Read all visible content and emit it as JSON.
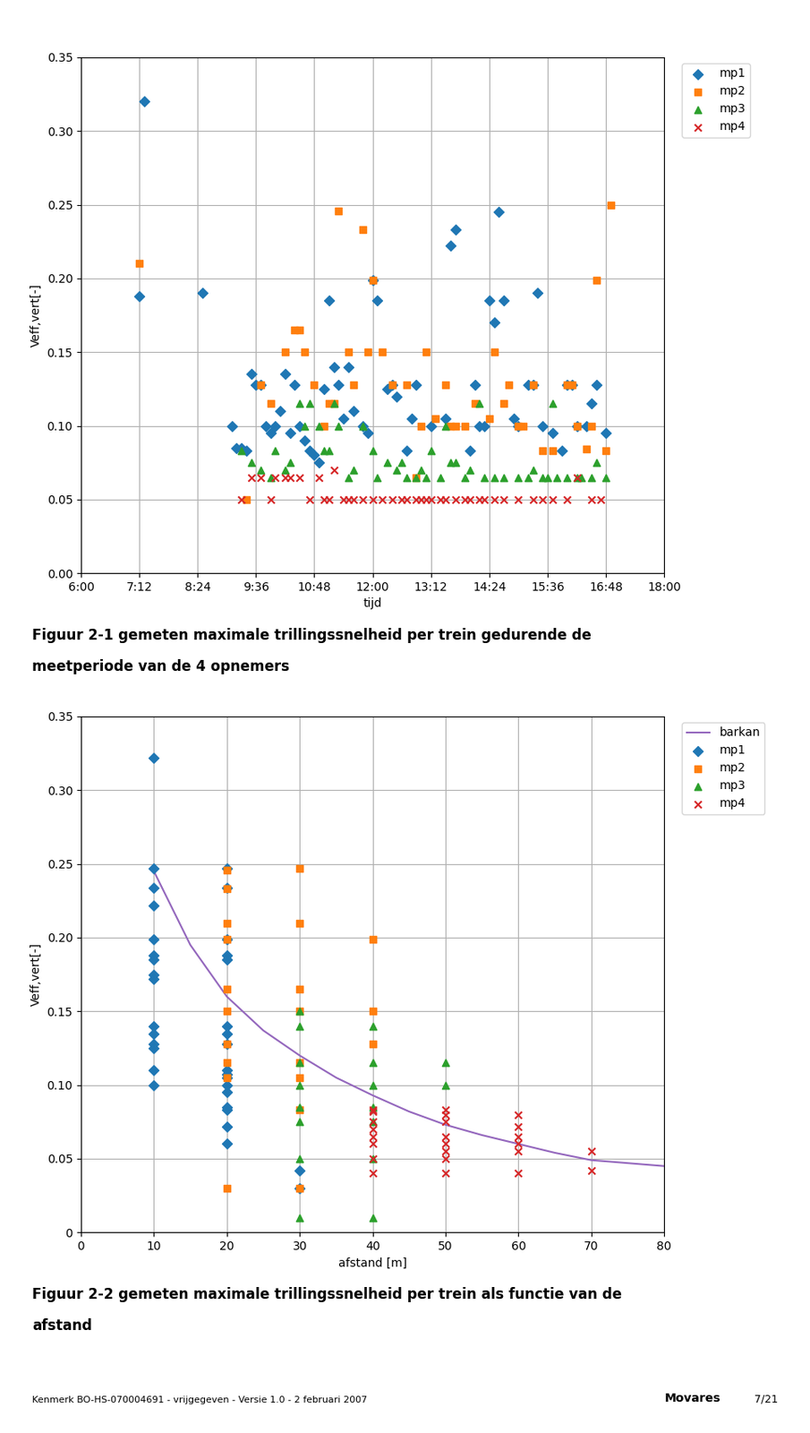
{
  "chart_data": [
    {
      "type": "scatter",
      "xlabel": "tijd",
      "ylabel": "Veff,vert[-]",
      "xlim": [
        6.0,
        18.0
      ],
      "ylim": [
        0.0,
        0.35
      ],
      "xticks": [
        {
          "value": 6.0,
          "label": "6:00"
        },
        {
          "value": 7.2,
          "label": "7:12"
        },
        {
          "value": 8.4,
          "label": "8:24"
        },
        {
          "value": 9.6,
          "label": "9:36"
        },
        {
          "value": 10.8,
          "label": "10:48"
        },
        {
          "value": 12.0,
          "label": "12:00"
        },
        {
          "value": 13.2,
          "label": "13:12"
        },
        {
          "value": 14.4,
          "label": "14:24"
        },
        {
          "value": 15.6,
          "label": "15:36"
        },
        {
          "value": 16.8,
          "label": "16:48"
        },
        {
          "value": 18.0,
          "label": "18:00"
        }
      ],
      "yticks": [
        {
          "value": 0.0,
          "label": "0.00"
        },
        0.05,
        {
          "value": 0.1,
          "label": "0.10"
        },
        0.15,
        {
          "value": 0.2,
          "label": "0.20"
        },
        0.25,
        {
          "value": 0.3,
          "label": "0.30"
        },
        0.35
      ],
      "grid": true,
      "legend": "right",
      "annotations": [
        "Figuur 2-1 gemeten maximale trillingssnelheid per trein gedurende de",
        "meetperiode van de 4 opnemers"
      ],
      "series": [
        {
          "name": "mp1",
          "type": "scatter",
          "marker": "diamond",
          "x": [
            7.2,
            7.3,
            8.5,
            9.1,
            9.2,
            9.3,
            9.4,
            9.5,
            9.6,
            9.7,
            9.8,
            9.9,
            10.0,
            10.1,
            10.2,
            10.3,
            10.4,
            10.5,
            10.6,
            10.7,
            10.8,
            10.9,
            11.0,
            11.1,
            11.2,
            11.3,
            11.4,
            11.5,
            11.6,
            11.8,
            11.9,
            12.0,
            12.1,
            12.3,
            12.4,
            12.5,
            12.7,
            12.8,
            12.9,
            13.2,
            13.5,
            13.6,
            13.7,
            14.0,
            14.1,
            14.2,
            14.3,
            14.4,
            14.5,
            14.6,
            14.7,
            14.9,
            15.0,
            15.2,
            15.3,
            15.4,
            15.5,
            15.7,
            15.9,
            16.0,
            16.1,
            16.2,
            16.4,
            16.5,
            16.6,
            16.8
          ],
          "values": [
            0.188,
            0.32,
            0.19,
            0.1,
            0.085,
            0.085,
            0.083,
            0.135,
            0.128,
            0.128,
            0.1,
            0.095,
            0.1,
            0.11,
            0.135,
            0.095,
            0.128,
            0.1,
            0.09,
            0.083,
            0.08,
            0.075,
            0.125,
            0.185,
            0.14,
            0.128,
            0.105,
            0.14,
            0.11,
            0.1,
            0.095,
            0.199,
            0.185,
            0.125,
            0.128,
            0.12,
            0.083,
            0.105,
            0.128,
            0.1,
            0.105,
            0.222,
            0.233,
            0.083,
            0.128,
            0.1,
            0.1,
            0.185,
            0.17,
            0.245,
            0.185,
            0.105,
            0.1,
            0.128,
            0.128,
            0.19,
            0.1,
            0.095,
            0.083,
            0.128,
            0.128,
            0.1,
            0.1,
            0.115,
            0.128,
            0.095
          ]
        },
        {
          "name": "mp2",
          "type": "scatter",
          "marker": "square",
          "x": [
            7.2,
            9.4,
            9.7,
            9.9,
            10.2,
            10.4,
            10.5,
            10.6,
            10.8,
            11.0,
            11.1,
            11.2,
            11.3,
            11.5,
            11.6,
            11.8,
            11.9,
            12.0,
            12.2,
            12.4,
            12.7,
            12.9,
            13.0,
            13.1,
            13.3,
            13.5,
            13.6,
            13.7,
            13.9,
            14.1,
            14.4,
            14.5,
            14.7,
            14.8,
            15.0,
            15.1,
            15.3,
            15.5,
            15.7,
            16.0,
            16.1,
            16.2,
            16.4,
            16.5,
            16.6,
            16.8,
            16.9
          ],
          "values": [
            0.21,
            0.05,
            0.128,
            0.115,
            0.15,
            0.165,
            0.165,
            0.15,
            0.128,
            0.1,
            0.115,
            0.115,
            0.246,
            0.15,
            0.128,
            0.233,
            0.15,
            0.199,
            0.15,
            0.128,
            0.128,
            0.065,
            0.1,
            0.15,
            0.105,
            0.128,
            0.1,
            0.1,
            0.1,
            0.115,
            0.105,
            0.15,
            0.115,
            0.128,
            0.1,
            0.1,
            0.128,
            0.083,
            0.083,
            0.128,
            0.128,
            0.1,
            0.084,
            0.1,
            0.199,
            0.083,
            0.25
          ]
        },
        {
          "name": "mp3",
          "type": "scatter",
          "marker": "triangle",
          "x": [
            9.3,
            9.5,
            9.7,
            9.9,
            10.0,
            10.2,
            10.3,
            10.5,
            10.6,
            10.7,
            10.9,
            11.0,
            11.1,
            11.2,
            11.3,
            11.5,
            11.6,
            11.8,
            12.0,
            12.1,
            12.3,
            12.5,
            12.6,
            12.7,
            12.9,
            13.0,
            13.1,
            13.2,
            13.4,
            13.5,
            13.6,
            13.7,
            13.9,
            14.0,
            14.2,
            14.3,
            14.5,
            14.7,
            15.0,
            15.2,
            15.3,
            15.5,
            15.6,
            15.7,
            15.8,
            16.0,
            16.2,
            16.3,
            16.5,
            16.6,
            16.8
          ],
          "values": [
            0.083,
            0.075,
            0.07,
            0.065,
            0.083,
            0.07,
            0.075,
            0.115,
            0.1,
            0.115,
            0.1,
            0.083,
            0.083,
            0.115,
            0.1,
            0.065,
            0.07,
            0.1,
            0.083,
            0.065,
            0.075,
            0.07,
            0.075,
            0.065,
            0.065,
            0.07,
            0.065,
            0.083,
            0.065,
            0.1,
            0.075,
            0.075,
            0.065,
            0.07,
            0.115,
            0.065,
            0.065,
            0.065,
            0.065,
            0.065,
            0.07,
            0.065,
            0.065,
            0.115,
            0.065,
            0.065,
            0.065,
            0.065,
            0.065,
            0.075,
            0.065
          ]
        },
        {
          "name": "mp4",
          "type": "scatter",
          "marker": "x",
          "x": [
            9.3,
            9.5,
            9.7,
            9.9,
            10.0,
            10.2,
            10.3,
            10.5,
            10.7,
            10.9,
            11.0,
            11.1,
            11.2,
            11.4,
            11.5,
            11.6,
            11.8,
            12.0,
            12.2,
            12.4,
            12.6,
            12.7,
            12.9,
            13.0,
            13.1,
            13.2,
            13.4,
            13.5,
            13.7,
            13.9,
            14.0,
            14.2,
            14.3,
            14.5,
            14.7,
            15.0,
            15.3,
            15.5,
            15.7,
            16.0,
            16.2,
            16.5,
            16.7
          ],
          "values": [
            0.05,
            0.065,
            0.065,
            0.05,
            0.065,
            0.065,
            0.065,
            0.065,
            0.05,
            0.065,
            0.05,
            0.05,
            0.07,
            0.05,
            0.05,
            0.05,
            0.05,
            0.05,
            0.05,
            0.05,
            0.05,
            0.05,
            0.05,
            0.05,
            0.05,
            0.05,
            0.05,
            0.05,
            0.05,
            0.05,
            0.05,
            0.05,
            0.05,
            0.05,
            0.05,
            0.05,
            0.05,
            0.05,
            0.05,
            0.05,
            0.065,
            0.05,
            0.05
          ]
        }
      ]
    },
    {
      "type": "scatter",
      "xlabel": "afstand [m]",
      "ylabel": "Veff,vert[-]",
      "xlim": [
        0,
        80
      ],
      "ylim": [
        0.0,
        0.35
      ],
      "xticks": [
        0,
        10,
        20,
        30,
        40,
        50,
        60,
        70,
        80
      ],
      "yticks": [
        0,
        0.05,
        {
          "value": 0.1,
          "label": "0.10"
        },
        0.15,
        {
          "value": 0.2,
          "label": "0.20"
        },
        0.25,
        {
          "value": 0.3,
          "label": "0.30"
        },
        0.35
      ],
      "grid": true,
      "legend": "right",
      "annotations": [
        "Figuur 2-2 gemeten maximale trillingssnelheid per trein als functie van de",
        "afstand"
      ],
      "series": [
        {
          "name": "barkan",
          "type": "line",
          "x": [
            10,
            15,
            20,
            25,
            30,
            35,
            40,
            45,
            50,
            55,
            60,
            65,
            70,
            75,
            80
          ],
          "values": [
            0.245,
            0.195,
            0.16,
            0.137,
            0.12,
            0.105,
            0.093,
            0.082,
            0.073,
            0.066,
            0.06,
            0.054,
            0.049,
            0.047,
            0.045
          ]
        },
        {
          "name": "mp1",
          "type": "scatter",
          "marker": "diamond",
          "x": [
            10,
            10,
            10,
            10,
            10,
            10,
            10,
            10,
            10,
            10,
            10,
            10,
            10,
            10,
            10,
            20,
            20,
            20,
            20,
            20,
            20,
            20,
            20,
            20,
            20,
            20,
            20,
            20,
            20,
            20,
            20,
            20,
            30,
            30
          ],
          "values": [
            0.322,
            0.247,
            0.234,
            0.222,
            0.199,
            0.188,
            0.185,
            0.175,
            0.172,
            0.14,
            0.135,
            0.128,
            0.125,
            0.11,
            0.1,
            0.247,
            0.234,
            0.199,
            0.188,
            0.185,
            0.14,
            0.135,
            0.128,
            0.11,
            0.107,
            0.105,
            0.1,
            0.095,
            0.085,
            0.083,
            0.072,
            0.06,
            0.042,
            0.03
          ]
        },
        {
          "name": "mp2",
          "type": "scatter",
          "marker": "square",
          "x": [
            20,
            20,
            20,
            20,
            20,
            20,
            20,
            20,
            20,
            20,
            30,
            30,
            30,
            30,
            30,
            30,
            30,
            30,
            40,
            40,
            40
          ],
          "values": [
            0.246,
            0.233,
            0.21,
            0.199,
            0.165,
            0.15,
            0.128,
            0.115,
            0.105,
            0.03,
            0.247,
            0.21,
            0.165,
            0.15,
            0.115,
            0.105,
            0.083,
            0.03,
            0.199,
            0.15,
            0.128
          ]
        },
        {
          "name": "mp3",
          "type": "scatter",
          "marker": "triangle",
          "x": [
            30,
            30,
            30,
            30,
            30,
            30,
            30,
            30,
            40,
            40,
            40,
            40,
            40,
            40,
            40,
            50,
            50
          ],
          "values": [
            0.15,
            0.14,
            0.115,
            0.1,
            0.085,
            0.075,
            0.05,
            0.01,
            0.14,
            0.115,
            0.1,
            0.085,
            0.075,
            0.05,
            0.01,
            0.115,
            0.1
          ]
        },
        {
          "name": "mp4",
          "type": "scatter",
          "marker": "x",
          "x": [
            40,
            40,
            40,
            40,
            40,
            40,
            40,
            40,
            50,
            50,
            50,
            50,
            50,
            50,
            50,
            50,
            60,
            60,
            60,
            60,
            60,
            60,
            70,
            70
          ],
          "values": [
            0.083,
            0.082,
            0.075,
            0.07,
            0.065,
            0.06,
            0.05,
            0.04,
            0.083,
            0.08,
            0.075,
            0.065,
            0.06,
            0.055,
            0.05,
            0.04,
            0.08,
            0.072,
            0.065,
            0.06,
            0.055,
            0.04,
            0.055,
            0.042
          ]
        }
      ]
    }
  ],
  "annotations": [
    "Kenmerk BO-HS-070004691 - vrijgegeven - Versie 1.0 - 2 februari 2007",
    "Movares",
    "7/21"
  ]
}
